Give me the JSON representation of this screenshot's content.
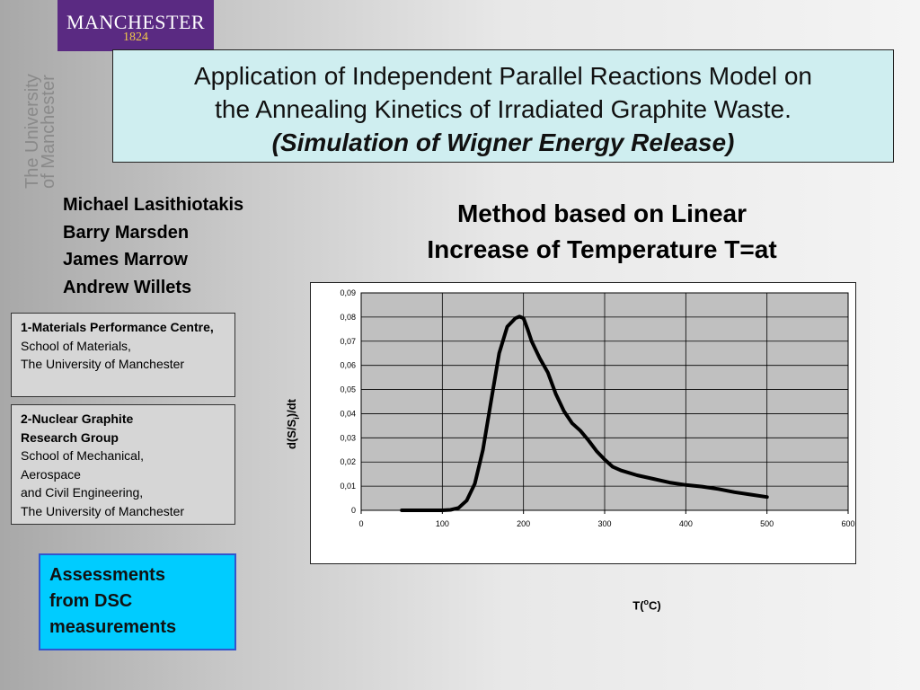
{
  "logo": {
    "line1": "MANCHESTER",
    "line2": "1824"
  },
  "side_text": {
    "line1": "The University",
    "line2": "of Manchester"
  },
  "title": {
    "line1": "Application of Independent Parallel Reactions Model on",
    "line2": "the Annealing Kinetics of Irradiated Graphite Waste.",
    "subtitle": "(Simulation of Wigner Energy Release)"
  },
  "authors": [
    "Michael Lasithiotakis",
    "Barry Marsden",
    "James Marrow",
    "Andrew Willets"
  ],
  "affiliation1": {
    "heading": "1-Materials Performance Centre",
    "lines": [
      "School of Materials,",
      "The University of Manchester"
    ]
  },
  "affiliation2": {
    "heading_lines": [
      "2-Nuclear Graphite",
      "Research Group"
    ],
    "lines": [
      "School of Mechanical,",
      "Aerospace",
      "and Civil Engineering,",
      "The University of Manchester"
    ]
  },
  "assessment": {
    "lines": [
      "Assessments",
      "from DSC",
      "measurements"
    ]
  },
  "method_heading": {
    "line1": "Method based on Linear",
    "line2": "Increase of Temperature T=at"
  },
  "chart_data": {
    "type": "line",
    "ylabel_main": "d(S/S",
    "ylabel_sub": "i",
    "ylabel_end": ")/dt",
    "xlabel_main": "T(",
    "xlabel_sup": "o",
    "xlabel_end": "C)",
    "xlim": [
      0,
      600
    ],
    "ylim": [
      0,
      0.09
    ],
    "x_ticks": [
      0,
      100,
      200,
      300,
      400,
      500,
      600
    ],
    "x_tick_labels": [
      "0",
      "100",
      "200",
      "300",
      "400",
      "500",
      "600"
    ],
    "y_ticks": [
      0,
      0.01,
      0.02,
      0.03,
      0.04,
      0.05,
      0.06,
      0.07,
      0.08,
      0.09
    ],
    "y_tick_labels": [
      "0",
      "0,01",
      "0,02",
      "0,03",
      "0,04",
      "0,05",
      "0,06",
      "0,07",
      "0,08",
      "0,09"
    ],
    "grid": true,
    "series": [
      {
        "color": "#000000",
        "x": [
          50,
          80,
          100,
          110,
          120,
          130,
          140,
          150,
          160,
          170,
          180,
          190,
          195,
          200,
          205,
          210,
          220,
          230,
          240,
          250,
          260,
          270,
          280,
          290,
          300,
          310,
          320,
          340,
          360,
          380,
          400,
          420,
          440,
          460,
          480,
          500
        ],
        "y": [
          0.0,
          0.0,
          0.0,
          0.0002,
          0.001,
          0.004,
          0.011,
          0.025,
          0.045,
          0.065,
          0.076,
          0.0795,
          0.0802,
          0.0795,
          0.075,
          0.07,
          0.063,
          0.057,
          0.048,
          0.041,
          0.036,
          0.033,
          0.029,
          0.0245,
          0.021,
          0.018,
          0.0165,
          0.0145,
          0.013,
          0.0115,
          0.0105,
          0.0098,
          0.0088,
          0.0075,
          0.0065,
          0.0055
        ]
      }
    ]
  },
  "colors": {
    "logo_bg": "#5a2a82",
    "title_bg": "#cfeef0",
    "affiliation_bg": "#d6d6d6",
    "assessment_bg": "#00ccff",
    "plot_area": "#c0c0c0"
  }
}
